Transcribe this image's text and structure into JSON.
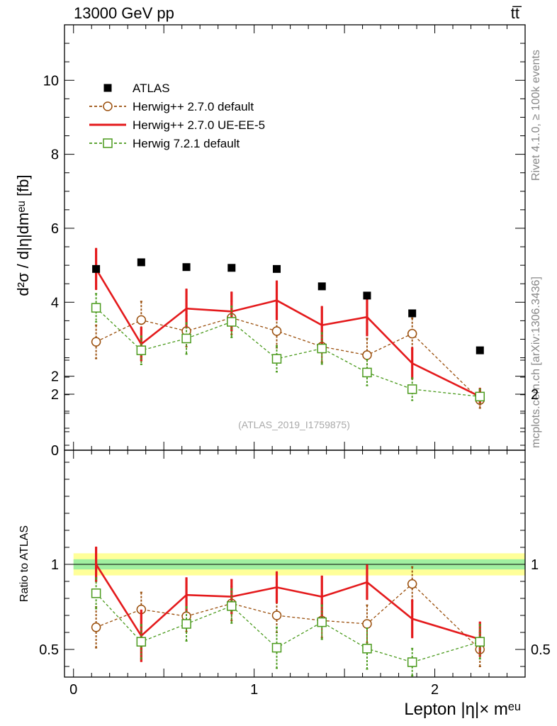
{
  "header": {
    "left": "13000 GeV pp",
    "right": "tt̅"
  },
  "side_labels": {
    "rivet": "Rivet 4.1.0, ≥ 100k events",
    "site": "mcplots.cern.ch [arXiv:1306.3436]"
  },
  "watermark": "(ATLAS_2019_I1759875)",
  "chart_data": [
    {
      "panel": "main",
      "type": "line",
      "ylabel": "d²σ / d|η|dmᵉᵘ [fb]",
      "xlim": [
        -0.05,
        2.5
      ],
      "ylim": [
        0,
        11.5
      ],
      "yticks": [
        0,
        2,
        4,
        6,
        8,
        10
      ],
      "ytick_labels": [
        "0",
        "2",
        "4",
        "6",
        "8",
        "10"
      ],
      "x": [
        0.125,
        0.375,
        0.625,
        0.875,
        1.125,
        1.375,
        1.625,
        1.875,
        2.25
      ],
      "series": [
        {
          "name": "ATLAS",
          "key": "atlas",
          "color": "#000000",
          "values": [
            4.9,
            5.08,
            4.95,
            4.93,
            4.9,
            4.43,
            4.18,
            3.7,
            2.7
          ]
        },
        {
          "name": "Herwig++ 2.7.0 default",
          "key": "default",
          "color": "#9a4e0b",
          "values": [
            2.93,
            3.52,
            3.22,
            3.58,
            3.22,
            2.8,
            2.57,
            3.15,
            1.36
          ],
          "errors": [
            0.45,
            0.5,
            0.42,
            0.45,
            0.45,
            0.42,
            0.45,
            0.42,
            0.22
          ]
        },
        {
          "name": "Herwig++ 2.7.0 UE-EE-5",
          "key": "ueee5",
          "color": "#e41a1c",
          "values": [
            4.9,
            2.87,
            3.83,
            3.75,
            4.05,
            3.38,
            3.6,
            2.35,
            1.45
          ],
          "errors": [
            0.55,
            0.45,
            0.52,
            0.52,
            0.52,
            0.5,
            0.5,
            0.42,
            0.22
          ]
        },
        {
          "name": "Herwig 7.2.1 default",
          "key": "h7",
          "color": "#4a9a1c",
          "values": [
            3.85,
            2.7,
            3.02,
            3.47,
            2.47,
            2.75,
            2.1,
            1.65,
            1.45
          ],
          "errors": [
            0.38,
            0.38,
            0.42,
            0.42,
            0.35,
            0.42,
            0.35,
            0.3,
            0.2
          ]
        }
      ]
    },
    {
      "panel": "ratio",
      "type": "line",
      "ylabel": "Ratio to ATLAS",
      "xlabel": "Lepton |η|× mᵉᵘ",
      "xlim": [
        -0.05,
        2.5
      ],
      "ylim": [
        0.34,
        2.25
      ],
      "xticks": [
        0,
        1,
        2
      ],
      "xtick_labels": [
        "0",
        "1",
        "2"
      ],
      "yticks": [
        0.5,
        1,
        2
      ],
      "ytick_labels": [
        "0.5",
        "1",
        "2"
      ],
      "x": [
        0.125,
        0.375,
        0.625,
        0.875,
        1.125,
        1.375,
        1.625,
        1.875,
        2.25
      ],
      "band_inner": 0.03,
      "band_outer": 0.065,
      "series": [
        {
          "name": "Herwig++ 2.7.0 default",
          "key": "default",
          "color": "#9a4e0b",
          "values": [
            0.63,
            0.735,
            0.695,
            0.77,
            0.7,
            0.67,
            0.65,
            0.885,
            0.5
          ],
          "errors": [
            0.12,
            0.1,
            0.09,
            0.1,
            0.1,
            0.1,
            0.11,
            0.1,
            0.1
          ]
        },
        {
          "name": "Herwig++ 2.7.0 UE-EE-5",
          "key": "ueee5",
          "color": "#e41a1c",
          "values": [
            1.0,
            0.58,
            0.82,
            0.81,
            0.865,
            0.81,
            0.895,
            0.68,
            0.56
          ],
          "errors": [
            0.1,
            0.15,
            0.1,
            0.1,
            0.09,
            0.12,
            0.1,
            0.11,
            0.1
          ]
        },
        {
          "name": "Herwig 7.2.1 default",
          "key": "h7",
          "color": "#4a9a1c",
          "values": [
            0.83,
            0.545,
            0.65,
            0.755,
            0.51,
            0.66,
            0.505,
            0.425,
            0.545
          ],
          "errors": [
            0.09,
            0.1,
            0.1,
            0.1,
            0.12,
            0.1,
            0.12,
            0.08,
            0.1
          ]
        }
      ]
    }
  ]
}
